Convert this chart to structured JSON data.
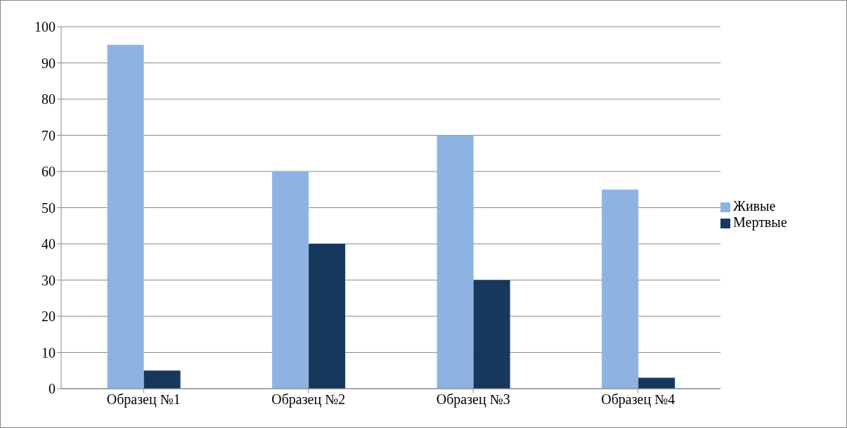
{
  "chart_data": {
    "type": "bar",
    "categories": [
      "Образец №1",
      "Образец №2",
      "Образец №3",
      "Образец  №4"
    ],
    "series": [
      {
        "name": "Живые",
        "color": "#8eb3e2",
        "values": [
          95,
          60,
          70,
          55
        ]
      },
      {
        "name": "Мертвые",
        "color": "#18375d",
        "values": [
          5,
          40,
          30,
          3
        ]
      }
    ],
    "ylim": [
      0,
      100
    ],
    "yticks": [
      0,
      10,
      20,
      30,
      40,
      50,
      60,
      70,
      80,
      90,
      100
    ],
    "grid": "y",
    "legend": "right"
  }
}
